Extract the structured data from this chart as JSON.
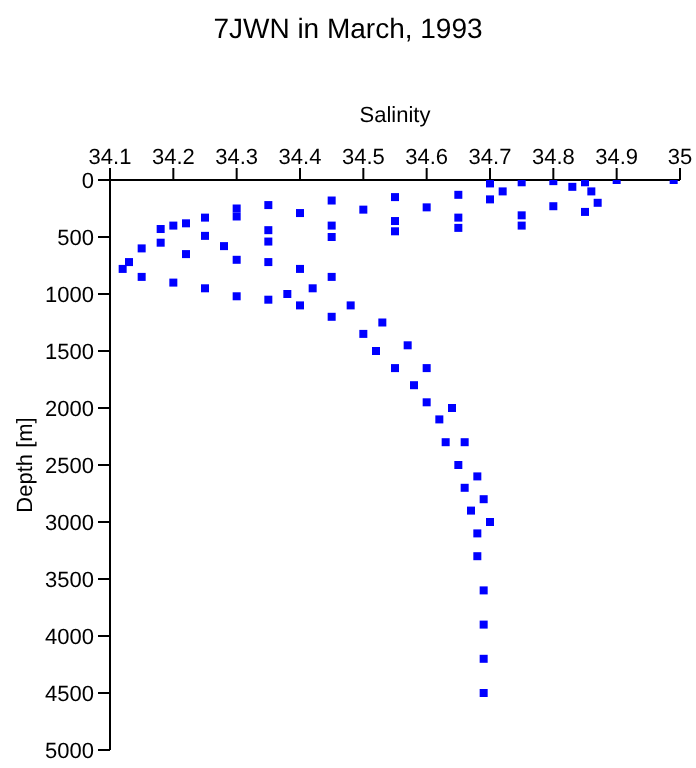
{
  "chart_data": {
    "type": "scatter",
    "title": "7JWN in March, 1993",
    "xlabel": "Salinity",
    "ylabel": "Depth [m]",
    "series": [
      {
        "color": "#0000ff",
        "x": [
          34.7,
          34.75,
          34.8,
          34.85,
          34.9,
          34.99,
          34.83,
          34.86,
          34.87,
          34.8,
          34.7,
          34.72,
          34.65,
          34.55,
          34.45,
          34.35,
          34.3,
          34.25,
          34.2,
          34.6,
          34.5,
          34.4,
          34.3,
          34.22,
          34.18,
          34.85,
          34.75,
          34.65,
          34.55,
          34.45,
          34.35,
          34.25,
          34.18,
          34.15,
          34.75,
          34.65,
          34.55,
          34.45,
          34.35,
          34.28,
          34.22,
          34.13,
          34.12,
          34.15,
          34.2,
          34.25,
          34.3,
          34.35,
          34.4,
          34.45,
          34.42,
          34.38,
          34.3,
          34.35,
          34.4,
          34.45,
          34.5,
          34.52,
          34.55,
          34.58,
          34.6,
          34.62,
          34.63,
          34.65,
          34.66,
          34.67,
          34.68,
          34.68,
          34.69,
          34.69,
          34.69,
          34.69,
          34.48,
          34.53,
          34.57,
          34.6,
          34.64,
          34.66,
          34.68,
          34.69,
          34.7
        ],
        "values": [
          30,
          20,
          10,
          20,
          0,
          0,
          60,
          100,
          200,
          230,
          170,
          100,
          130,
          150,
          180,
          220,
          250,
          330,
          400,
          240,
          260,
          290,
          320,
          380,
          430,
          280,
          310,
          330,
          360,
          400,
          440,
          490,
          550,
          600,
          400,
          420,
          450,
          500,
          540,
          580,
          650,
          720,
          780,
          850,
          900,
          950,
          700,
          720,
          780,
          850,
          950,
          1000,
          1020,
          1050,
          1100,
          1200,
          1350,
          1500,
          1650,
          1800,
          1950,
          2100,
          2300,
          2500,
          2700,
          2900,
          3100,
          3300,
          3600,
          3900,
          4200,
          4500,
          1100,
          1250,
          1450,
          1650,
          2000,
          2300,
          2600,
          2800,
          3000
        ]
      }
    ],
    "xlim": [
      34.1,
      35
    ],
    "xticks": [
      34.1,
      34.2,
      34.3,
      34.4,
      34.5,
      34.6,
      34.7,
      34.8,
      34.9,
      35
    ],
    "ylim": [
      5000,
      0
    ],
    "yticks": [
      0,
      500,
      1000,
      1500,
      2000,
      2500,
      3000,
      3500,
      4000,
      4500,
      5000
    ],
    "grid": false,
    "legend": false,
    "marker": "square"
  }
}
